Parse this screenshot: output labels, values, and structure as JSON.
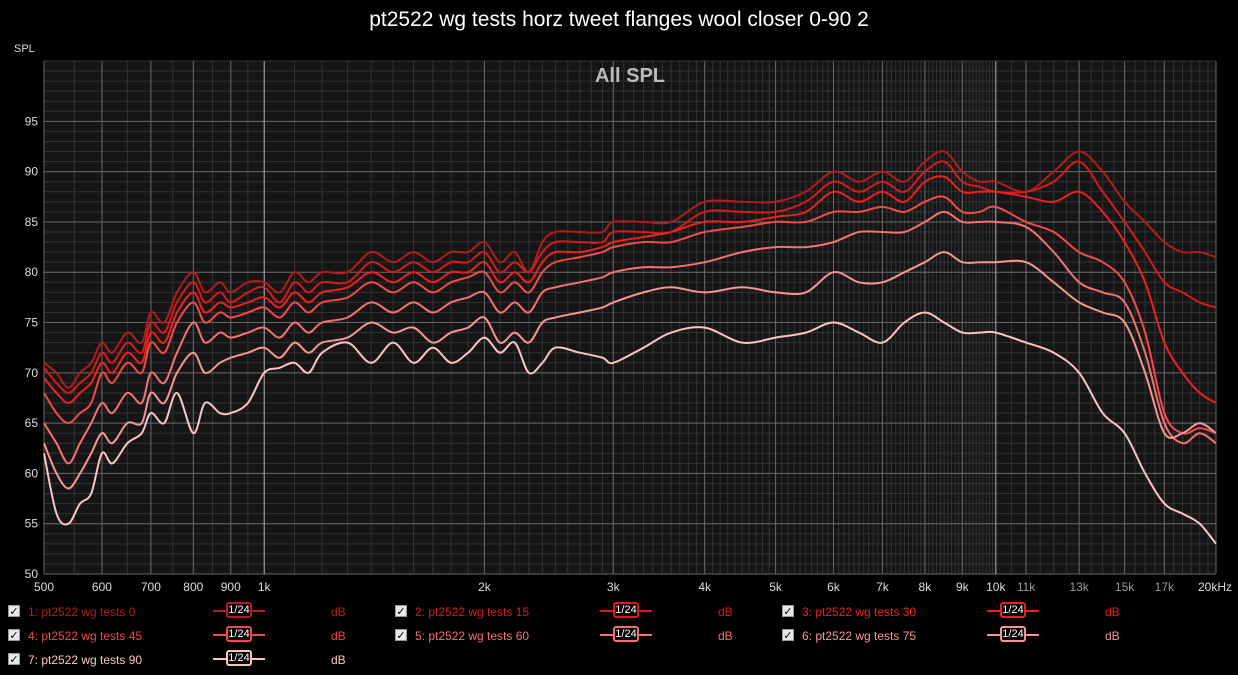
{
  "title": "pt2522 wg tests horz tweet flanges wool closer 0-90 2",
  "colors": {
    "background": "#111111",
    "plot_background": "#151515",
    "grid_major": "#666666",
    "grid_minor": "#333333",
    "text": "#dddddd"
  },
  "chart_data": {
    "type": "line",
    "title": "pt2522 wg tests horz tweet flanges wool closer 0-90 2",
    "subtitle": "All SPL",
    "ylabel": "SPL",
    "xlabel": "",
    "xscale": "log",
    "xlim": [
      500,
      20000
    ],
    "ylim": [
      50,
      101
    ],
    "grid": true,
    "y_ticks": [
      50,
      55,
      60,
      65,
      70,
      75,
      80,
      85,
      90,
      95
    ],
    "x_ticks": [
      {
        "value": 500,
        "label": "500"
      },
      {
        "value": 600,
        "label": "600"
      },
      {
        "value": 700,
        "label": "700"
      },
      {
        "value": 800,
        "label": "800"
      },
      {
        "value": 900,
        "label": "900"
      },
      {
        "value": 1000,
        "label": "1k"
      },
      {
        "value": 2000,
        "label": "2k"
      },
      {
        "value": 3000,
        "label": "3k"
      },
      {
        "value": 4000,
        "label": "4k"
      },
      {
        "value": 5000,
        "label": "5k"
      },
      {
        "value": 6000,
        "label": "6k"
      },
      {
        "value": 7000,
        "label": "7k"
      },
      {
        "value": 8000,
        "label": "8k"
      },
      {
        "value": 9000,
        "label": "9k"
      },
      {
        "value": 10000,
        "label": "10k"
      },
      {
        "value": 11000,
        "label": "11k"
      },
      {
        "value": 13000,
        "label": "13k"
      },
      {
        "value": 15000,
        "label": "15k"
      },
      {
        "value": 17000,
        "label": "17k"
      },
      {
        "value": 20000,
        "label": "20kHz"
      }
    ],
    "x": [
      500,
      520,
      540,
      560,
      580,
      600,
      620,
      650,
      680,
      700,
      730,
      760,
      800,
      830,
      870,
      900,
      950,
      1000,
      1050,
      1100,
      1150,
      1200,
      1300,
      1400,
      1500,
      1600,
      1700,
      1800,
      1900,
      2000,
      2100,
      2200,
      2300,
      2400,
      2500,
      2700,
      2900,
      3000,
      3300,
      3600,
      4000,
      4500,
      5000,
      5500,
      6000,
      6500,
      7000,
      7500,
      8000,
      8500,
      9000,
      9500,
      10000,
      11000,
      12000,
      13000,
      14000,
      15000,
      16000,
      17000,
      18000,
      19000,
      20000
    ],
    "series": [
      {
        "name": "1: pt2522 wg tests 0",
        "color": "#b31c1c",
        "values": [
          71,
          70,
          68.5,
          70,
          71,
          73,
          72,
          74,
          73,
          76,
          75,
          78,
          80,
          78,
          79,
          78,
          79,
          79,
          78,
          80,
          79,
          80,
          80,
          82,
          81,
          82,
          81,
          82,
          82,
          83,
          81,
          82,
          80,
          83,
          84,
          84,
          84,
          85,
          85,
          85,
          87,
          87,
          87,
          88,
          90,
          89,
          90,
          89,
          91,
          92,
          90,
          89,
          89,
          88,
          90,
          92,
          90,
          87,
          85,
          83,
          82,
          82,
          81.5
        ]
      },
      {
        "name": "2: pt2522 wg tests 15",
        "color": "#d81a1a",
        "values": [
          70.5,
          69,
          68,
          69,
          70,
          72,
          71,
          73,
          72,
          75,
          74,
          77,
          79,
          77,
          78,
          77,
          78,
          78.5,
          77,
          79,
          78,
          79,
          79,
          81,
          80,
          81,
          80,
          81,
          81,
          82,
          80,
          81,
          80,
          82,
          83,
          83,
          83,
          84,
          84,
          84,
          86,
          86,
          86,
          87,
          89,
          88,
          89,
          88,
          90,
          91,
          89,
          88.5,
          88,
          88,
          89,
          91,
          88,
          85,
          82,
          79,
          78,
          77,
          76.5
        ]
      },
      {
        "name": "3: pt2522 wg tests 30",
        "color": "#ee2020",
        "values": [
          69.5,
          68,
          67,
          68,
          69,
          71,
          70,
          72,
          71,
          74,
          73,
          76,
          78,
          76,
          77,
          76.5,
          77,
          77.5,
          76.5,
          78,
          77,
          78,
          78.5,
          80,
          79,
          80,
          79,
          80,
          80,
          81,
          79,
          80,
          79,
          81,
          82,
          82,
          82.5,
          83,
          83.5,
          84,
          85,
          85,
          85.5,
          86,
          88,
          87,
          88,
          87,
          89,
          89.5,
          88,
          88,
          88,
          87.5,
          87,
          88,
          86,
          83,
          79,
          73,
          70,
          68,
          67
        ]
      },
      {
        "name": "4: pt2522 wg tests 45",
        "color": "#f04a4a",
        "values": [
          68,
          66,
          65,
          66,
          67,
          70,
          69,
          71,
          70,
          73,
          72,
          75,
          77,
          75,
          76,
          75.5,
          76,
          76.5,
          75.5,
          77,
          76,
          77,
          77.5,
          79,
          78,
          79,
          78,
          79,
          79.5,
          80,
          78,
          79,
          78,
          80,
          81,
          81.5,
          82,
          82.5,
          83,
          83,
          84,
          84.5,
          85,
          85,
          86,
          86,
          86.5,
          86,
          87,
          87.5,
          86,
          86,
          86.5,
          85,
          84,
          82,
          81,
          79,
          74,
          66,
          64,
          64.5,
          64
        ]
      },
      {
        "name": "5: pt2522 wg tests 60",
        "color": "#f57070",
        "values": [
          65,
          63,
          61,
          63,
          65,
          67,
          66,
          68,
          67,
          70,
          69,
          72,
          75,
          73,
          74,
          73.5,
          74,
          74.5,
          73.5,
          75,
          74,
          75,
          75.5,
          77,
          76,
          77,
          76,
          77,
          77.5,
          78,
          76,
          77,
          76,
          78,
          78.5,
          79,
          79.5,
          80,
          80.5,
          80.5,
          81,
          82,
          82.5,
          82.5,
          83,
          84,
          84,
          84,
          85,
          86,
          85,
          85,
          85,
          84.5,
          82,
          79,
          78,
          77,
          72,
          65,
          63,
          64,
          63
        ]
      },
      {
        "name": "6: pt2522 wg tests 75",
        "color": "#f79595",
        "values": [
          63,
          60,
          58.5,
          60,
          62,
          64,
          63,
          65,
          65,
          68,
          67,
          70,
          72,
          70,
          71,
          71.5,
          72,
          72.5,
          71.5,
          73,
          72,
          73,
          73.5,
          75,
          74,
          74.5,
          73,
          74,
          74.5,
          75.5,
          73,
          74,
          73,
          75,
          75.5,
          76,
          76.5,
          77,
          78,
          78.5,
          78,
          78.5,
          78,
          78,
          80,
          79,
          79,
          80,
          81,
          82,
          81,
          81,
          81,
          81,
          79,
          77,
          76,
          75,
          70,
          64,
          64,
          65,
          64
        ]
      },
      {
        "name": "7: pt2522 wg tests 90",
        "color": "#fbc4c4",
        "values": [
          62,
          56,
          55,
          57,
          58,
          62,
          61,
          63,
          64,
          66,
          65,
          68,
          64,
          67,
          66,
          66,
          67,
          70,
          70.5,
          71,
          70,
          72,
          73,
          71,
          73,
          71,
          72.5,
          71,
          72,
          73.5,
          72,
          73,
          70,
          71,
          72.5,
          72,
          71.5,
          71,
          72.5,
          74,
          74.5,
          73,
          73.5,
          74,
          75,
          74,
          73,
          75,
          76,
          75,
          74,
          74,
          74,
          73,
          72,
          70,
          66,
          64,
          60,
          57,
          56,
          55,
          53
        ]
      }
    ]
  },
  "legend": [
    {
      "id": 1,
      "label": "1: pt2522 wg tests 0",
      "smoothing": "1/24",
      "unit": "dB",
      "checked": "✓"
    },
    {
      "id": 2,
      "label": "2: pt2522 wg tests 15",
      "smoothing": "1/24",
      "unit": "dB",
      "checked": "✓"
    },
    {
      "id": 3,
      "label": "3: pt2522 wg tests 30",
      "smoothing": "1/24",
      "unit": "dB",
      "checked": "✓"
    },
    {
      "id": 4,
      "label": "4: pt2522 wg tests 45",
      "smoothing": "1/24",
      "unit": "dB",
      "checked": "✓"
    },
    {
      "id": 5,
      "label": "5: pt2522 wg tests 60",
      "smoothing": "1/24",
      "unit": "dB",
      "checked": "✓"
    },
    {
      "id": 6,
      "label": "6: pt2522 wg tests 75",
      "smoothing": "1/24",
      "unit": "dB",
      "checked": "✓"
    },
    {
      "id": 7,
      "label": "7: pt2522 wg tests 90",
      "smoothing": "1/24",
      "unit": "dB",
      "checked": "✓"
    }
  ]
}
